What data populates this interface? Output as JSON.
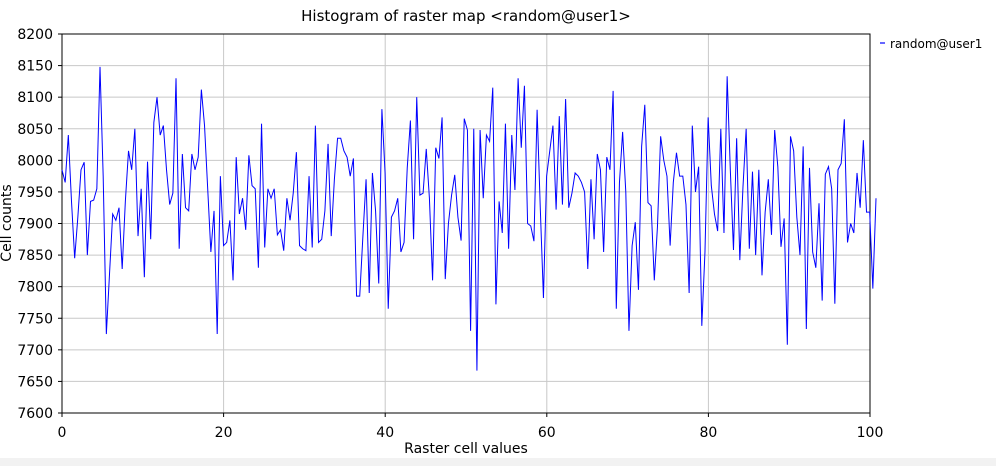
{
  "chart_data": {
    "type": "line",
    "title": "Histogram of raster map <random@user1>",
    "xlabel": "Raster cell values",
    "ylabel": "Cell counts",
    "xlim": [
      0,
      100
    ],
    "ylim": [
      7600,
      8200
    ],
    "x_ticks": [
      0,
      20,
      40,
      60,
      80,
      100
    ],
    "y_ticks": [
      7600,
      7650,
      7700,
      7750,
      7800,
      7850,
      7900,
      7950,
      8000,
      8050,
      8100,
      8150,
      8200
    ],
    "grid": true,
    "legend_position": "top-right-outside",
    "series": [
      {
        "name": "random@user1",
        "color": "#0000ff",
        "x_start": 0,
        "x_step": 0.392,
        "values": [
          7985,
          7965,
          8040,
          7935,
          7845,
          7910,
          7985,
          7997,
          7850,
          7935,
          7937,
          7955,
          8148,
          7975,
          7725,
          7820,
          7915,
          7905,
          7925,
          7828,
          7935,
          8015,
          7985,
          8050,
          7880,
          7955,
          7815,
          7998,
          7875,
          8060,
          8100,
          8040,
          8055,
          7985,
          7930,
          7948,
          8130,
          7860,
          8010,
          7925,
          7920,
          8010,
          7985,
          8005,
          8112,
          8055,
          7955,
          7855,
          7920,
          7725,
          7975,
          7865,
          7870,
          7905,
          7810,
          8005,
          7915,
          7940,
          7890,
          8008,
          7960,
          7955,
          7830,
          8058,
          7862,
          7955,
          7940,
          7955,
          7882,
          7890,
          7857,
          7940,
          7905,
          7948,
          8013,
          7865,
          7860,
          7857,
          7975,
          7862,
          8055,
          7870,
          7875,
          7920,
          8026,
          7880,
          7970,
          8035,
          8035,
          8015,
          8005,
          7975,
          8003,
          7785,
          7785,
          7880,
          7970,
          7790,
          7980,
          7920,
          7805,
          8081,
          7980,
          7765,
          7910,
          7920,
          7940,
          7855,
          7870,
          7988,
          8063,
          7875,
          8100,
          7945,
          7948,
          8018,
          7940,
          7810,
          8020,
          8003,
          8068,
          7812,
          7900,
          7945,
          7977,
          7910,
          7873,
          8066,
          8048,
          7730,
          8050,
          7667,
          8048,
          7940,
          8040,
          8030,
          8115,
          7772,
          7935,
          7885,
          8058,
          7860,
          8040,
          7953,
          8130,
          8020,
          8118,
          7900,
          7896,
          7872,
          8080,
          7925,
          7782,
          7975,
          8015,
          8055,
          7922,
          8070,
          7930,
          8097,
          7925,
          7948,
          7980,
          7975,
          7965,
          7950,
          7828,
          7970,
          7875,
          8010,
          7985,
          7855,
          8005,
          7985,
          8110,
          7765,
          7965,
          8045,
          7950,
          7730,
          7865,
          7902,
          7795,
          8022,
          8088,
          7933,
          7928,
          7810,
          7895,
          8038,
          8000,
          7975,
          7865,
          7965,
          8012,
          7975,
          7975,
          7930,
          7790,
          8055,
          7950,
          7990,
          7738,
          7855,
          8068,
          7960,
          7915,
          7888,
          8050,
          7885,
          8133,
          7985,
          7858,
          8035,
          7842,
          7958,
          8050,
          7860,
          7982,
          7850,
          7985,
          7818,
          7918,
          7970,
          7882,
          8048,
          7990,
          7863,
          7908,
          7708,
          8038,
          8015,
          7910,
          7850,
          8022,
          7733,
          7988,
          7855,
          7830,
          7932,
          7778,
          7978,
          7990,
          7955,
          7773,
          7985,
          7995,
          8065,
          7870,
          7900,
          7885,
          7980,
          7925,
          8032,
          7918,
          7918,
          7797,
          7940
        ]
      }
    ]
  }
}
